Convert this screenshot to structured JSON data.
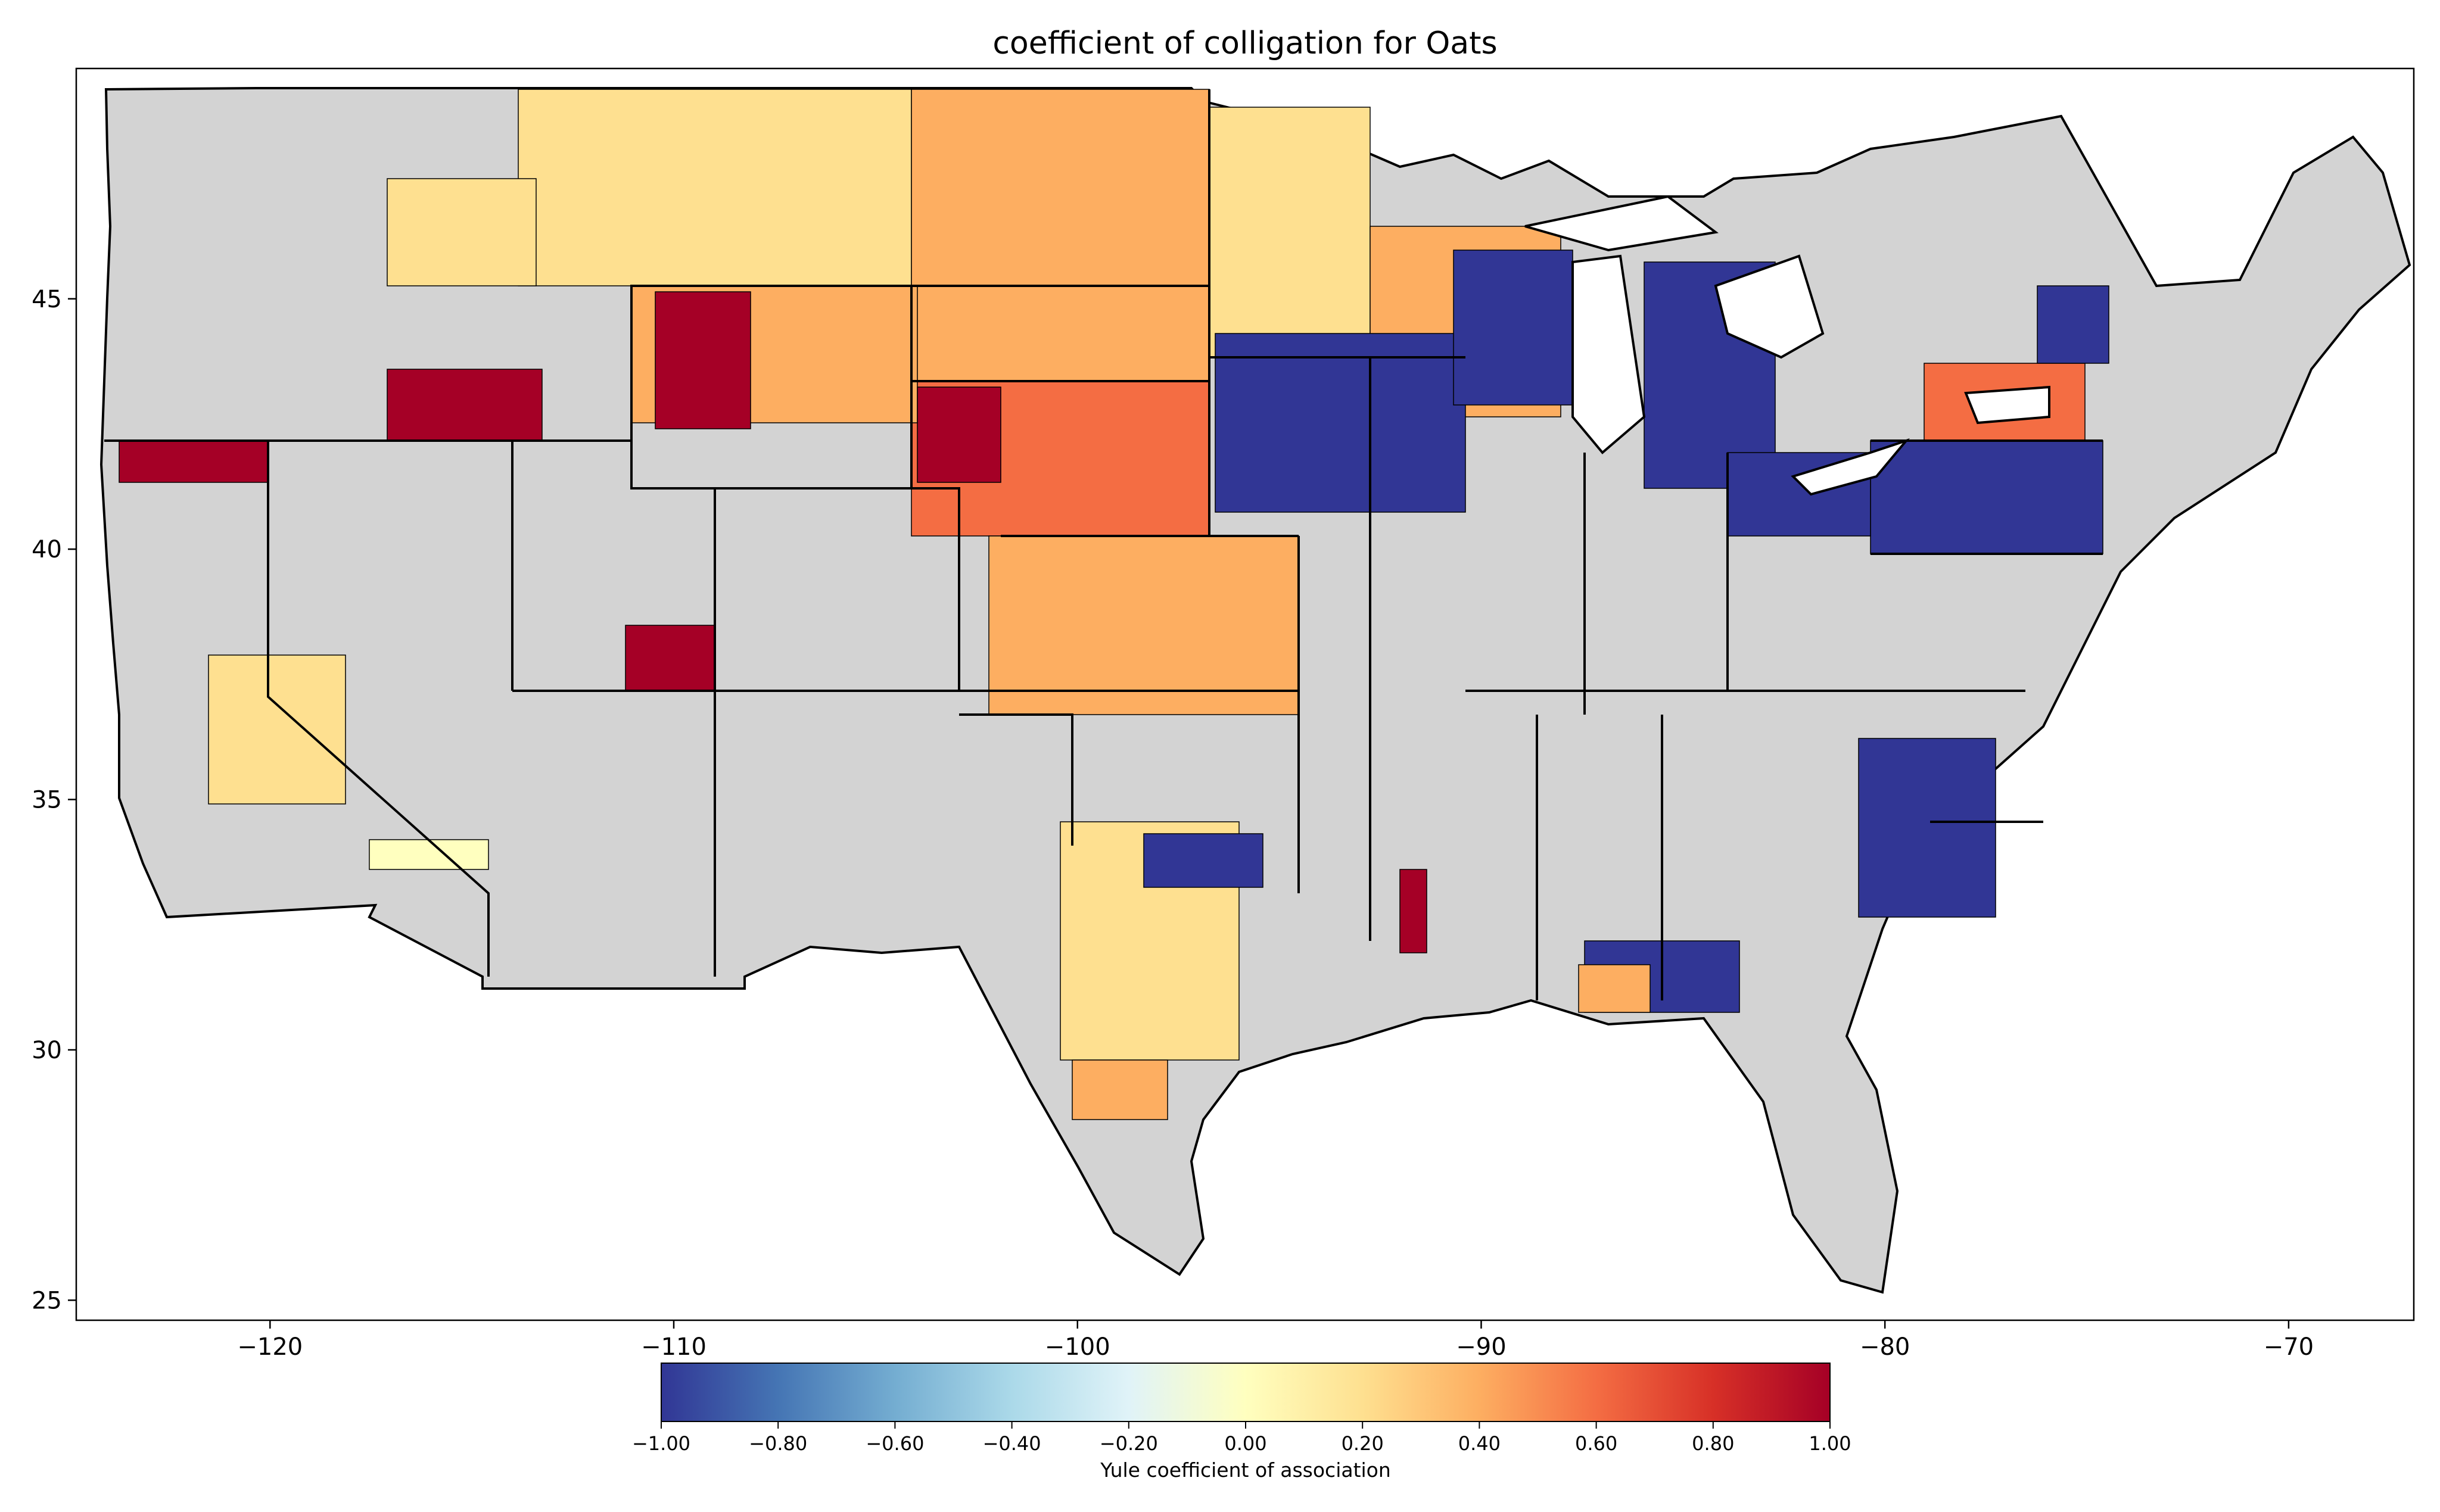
{
  "title": "coefficient of colligation for Oats",
  "map": {
    "region": "contiguous United States, county boundaries",
    "x_ticks": [
      "−120",
      "−110",
      "−100",
      "−90",
      "−80",
      "−70"
    ],
    "x_tick_values": [
      -120,
      -110,
      -100,
      -90,
      -80,
      -70
    ],
    "y_ticks": [
      "45",
      "40",
      "35",
      "30",
      "25"
    ],
    "y_tick_values": [
      45,
      40,
      35,
      30,
      25
    ],
    "xlim": [
      -124.8,
      -66.9
    ],
    "ylim": [
      24.6,
      49.6
    ],
    "no_data_color": "#d3d3d3",
    "boundary_color": "#000000"
  },
  "colorbar": {
    "label": "Yule coefficient of association",
    "colormap": "RdYlBu_r",
    "vmin": -1.0,
    "vmax": 1.0,
    "ticks": [
      "−1.00",
      "−0.80",
      "−0.60",
      "−0.40",
      "−0.20",
      "0.00",
      "0.20",
      "0.40",
      "0.60",
      "0.80",
      "1.00"
    ],
    "tick_values": [
      -1.0,
      -0.8,
      -0.6,
      -0.4,
      -0.2,
      0.0,
      0.2,
      0.4,
      0.6,
      0.8,
      1.0
    ],
    "colors": [
      "#313695",
      "#4575b4",
      "#74add1",
      "#abd9e9",
      "#e0f3f8",
      "#ffffbf",
      "#fee090",
      "#fdae61",
      "#f46d43",
      "#d73027",
      "#a50026"
    ]
  }
}
